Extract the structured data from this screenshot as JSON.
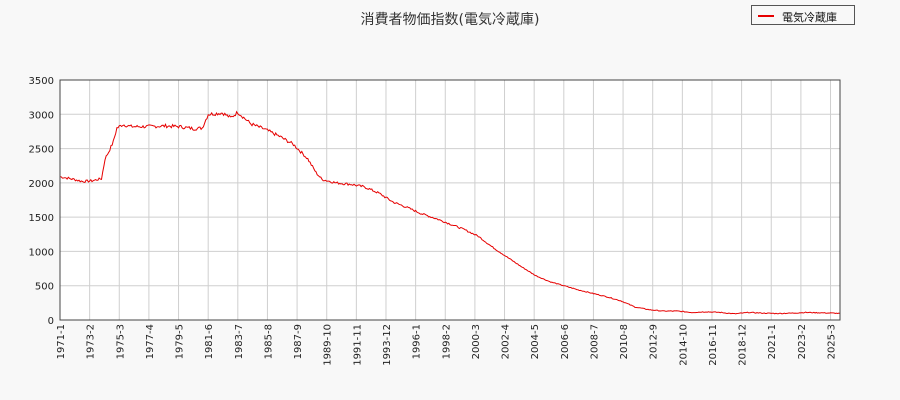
{
  "chart_data": {
    "type": "line",
    "title": "消費者物価指数(電気冷蔵庫)",
    "xlabel": "",
    "ylabel": "",
    "ylim": [
      0,
      3500
    ],
    "yticks": [
      0,
      500,
      1000,
      1500,
      2000,
      2500,
      3000,
      3500
    ],
    "x_tick_labels": [
      "1971-1",
      "1973-2",
      "1975-3",
      "1977-4",
      "1979-5",
      "1981-6",
      "1983-7",
      "1985-8",
      "1987-9",
      "1989-10",
      "1991-11",
      "1993-12",
      "1996-1",
      "1998-2",
      "2000-3",
      "2002-4",
      "2004-5",
      "2006-6",
      "2008-7",
      "2010-8",
      "2012-9",
      "2014-10",
      "2016-11",
      "2018-12",
      "2021-1",
      "2023-2",
      "2025-3"
    ],
    "x_range": [
      "1971-01",
      "2025-11"
    ],
    "grid": true,
    "legend_position": "top-right",
    "series": [
      {
        "name": "電気冷蔵庫",
        "color": "#e60000",
        "x": [
          "1971-01",
          "1972-01",
          "1972-08",
          "1973-04",
          "1973-12",
          "1974-03",
          "1974-06",
          "1974-10",
          "1975-01",
          "1975-06",
          "1976-01",
          "1977-01",
          "1978-06",
          "1979-06",
          "1980-06",
          "1981-01",
          "1981-06",
          "1982-06",
          "1983-01",
          "1983-07",
          "1984-06",
          "1985-06",
          "1986-06",
          "1987-06",
          "1988-06",
          "1989-01",
          "1989-06",
          "1990-06",
          "1991-06",
          "1992-06",
          "1993-06",
          "1994-06",
          "1995-06",
          "1996-06",
          "1997-06",
          "1998-06",
          "1999-06",
          "2000-06",
          "2001-06",
          "2002-06",
          "2003-06",
          "2004-06",
          "2005-06",
          "2006-06",
          "2007-06",
          "2008-06",
          "2009-06",
          "2010-06",
          "2011-06",
          "2012-06",
          "2013-06",
          "2014-06",
          "2015-06",
          "2016-06",
          "2017-06",
          "2018-06",
          "2019-06",
          "2020-06",
          "2021-06",
          "2022-06",
          "2023-06",
          "2024-06",
          "2025-06",
          "2025-11"
        ],
        "values": [
          2090,
          2050,
          2020,
          2030,
          2060,
          2350,
          2450,
          2600,
          2800,
          2850,
          2820,
          2820,
          2830,
          2820,
          2790,
          2800,
          3000,
          3020,
          2950,
          3030,
          2860,
          2780,
          2680,
          2560,
          2350,
          2150,
          2050,
          2000,
          1980,
          1940,
          1850,
          1720,
          1640,
          1550,
          1480,
          1400,
          1320,
          1220,
          1060,
          920,
          780,
          650,
          560,
          500,
          440,
          390,
          340,
          280,
          190,
          150,
          130,
          130,
          110,
          120,
          110,
          90,
          110,
          100,
          95,
          100,
          110,
          105,
          100,
          95
        ]
      }
    ]
  }
}
